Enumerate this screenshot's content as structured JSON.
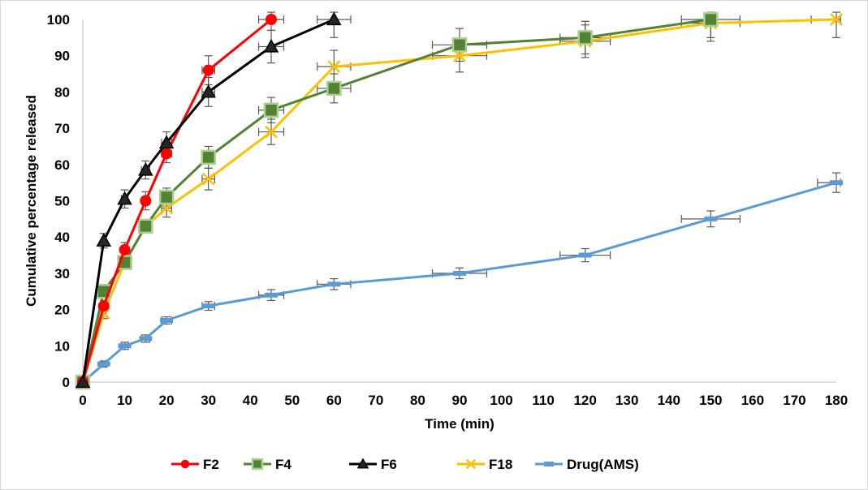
{
  "chart_data": {
    "type": "line",
    "title": "",
    "xlabel": "Time (min)",
    "ylabel": "Cumulative percentage released",
    "xlim": [
      0,
      180
    ],
    "ylim": [
      0,
      100
    ],
    "xticks": [
      0,
      10,
      20,
      30,
      40,
      50,
      60,
      70,
      80,
      90,
      100,
      110,
      120,
      130,
      140,
      150,
      160,
      170,
      180
    ],
    "yticks": [
      0,
      10,
      20,
      30,
      40,
      50,
      60,
      70,
      80,
      90,
      100
    ],
    "grid": false,
    "legend_position": "bottom",
    "error_bar_color": "#595959",
    "series": [
      {
        "name": "F2",
        "color": "#ff0000",
        "marker": "circle",
        "x": [
          0,
          5,
          10,
          15,
          20,
          30,
          45
        ],
        "y": [
          0,
          21,
          36.5,
          50,
          63,
          86,
          100
        ],
        "yerr": [
          0,
          1.5,
          2,
          2.5,
          2.5,
          4,
          3
        ],
        "xerr": [
          0,
          0.5,
          0.8,
          1,
          1.2,
          1.5,
          3
        ]
      },
      {
        "name": "F4",
        "color": "#548235",
        "marker_fill": "#548235",
        "marker_edge": "#a9d18e",
        "marker": "square",
        "x": [
          0,
          5,
          10,
          15,
          20,
          30,
          45,
          60,
          90,
          120,
          150
        ],
        "y": [
          0,
          25,
          33,
          43,
          51,
          62,
          75,
          81,
          93,
          95,
          100
        ],
        "yerr": [
          0,
          1.5,
          1.5,
          1.5,
          2.5,
          3,
          3.5,
          4,
          4.5,
          4.5,
          5
        ],
        "xerr": [
          0,
          0.5,
          0.8,
          1,
          1.2,
          1.5,
          3,
          4,
          6.5,
          6,
          7
        ]
      },
      {
        "name": "F6",
        "color": "#000000",
        "marker_fill": "#262626",
        "marker": "triangle",
        "x": [
          0,
          5,
          10,
          15,
          20,
          30,
          45,
          60
        ],
        "y": [
          0,
          39,
          50.5,
          58.5,
          66,
          80,
          92.5,
          100
        ],
        "yerr": [
          0,
          2,
          2.5,
          2.5,
          3,
          4,
          4.5,
          5
        ],
        "xerr": [
          0,
          0.5,
          0.8,
          1,
          1.2,
          1.5,
          3,
          4
        ]
      },
      {
        "name": "F18",
        "color": "#ffc000",
        "marker": "x",
        "x": [
          0,
          5,
          10,
          15,
          20,
          30,
          45,
          60,
          90,
          120,
          150,
          180
        ],
        "y": [
          0,
          19,
          33,
          43,
          48,
          56,
          69,
          87,
          90,
          94,
          99,
          100
        ],
        "yerr": [
          0,
          1.5,
          1.5,
          1.5,
          2.5,
          3,
          3.5,
          4.5,
          4.5,
          4.5,
          5,
          5
        ],
        "xerr": [
          0,
          0.5,
          0.8,
          1,
          1.2,
          1.5,
          3,
          4,
          6.5,
          6,
          7,
          6
        ]
      },
      {
        "name": "Drug(AMS)",
        "color": "#5b9bd5",
        "marker": "dash",
        "x": [
          0,
          5,
          10,
          15,
          20,
          30,
          45,
          60,
          90,
          120,
          150,
          180
        ],
        "y": [
          0,
          5,
          10,
          12,
          17,
          21,
          24,
          27,
          30,
          35,
          45,
          55
        ],
        "yerr": [
          0,
          0.8,
          1,
          1,
          1,
          1.2,
          1.5,
          1.5,
          1.5,
          1.8,
          2.2,
          2.7
        ],
        "xerr": [
          0,
          0.5,
          0.8,
          1,
          1.2,
          1.5,
          3,
          4,
          6.5,
          6,
          7,
          4.5
        ]
      }
    ]
  }
}
